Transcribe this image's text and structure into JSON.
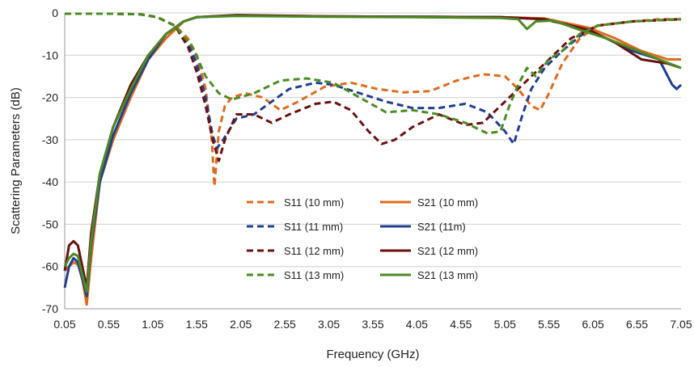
{
  "chart_data": {
    "type": "line",
    "title": "",
    "xlabel": "Frequency (GHz)",
    "ylabel": "Scattering Parameters (dB)",
    "xlim": [
      0.05,
      7.05
    ],
    "ylim": [
      -70,
      0
    ],
    "xticks": [
      "0.05",
      "0.55",
      "1.05",
      "1.55",
      "2.05",
      "2.55",
      "3.05",
      "3.55",
      "4.05",
      "4.55",
      "5.05",
      "5.55",
      "6.05",
      "6.55",
      "7.05"
    ],
    "yticks": [
      "0",
      "-10",
      "-20",
      "-30",
      "-40",
      "-50",
      "-60",
      "-70"
    ],
    "grid": "horizontal",
    "legend": "center",
    "series": [
      {
        "name": "S11 (10 mm)",
        "color": "#E06A1E",
        "dash": true,
        "points": [
          [
            0.05,
            -0.2
          ],
          [
            0.6,
            -0.2
          ],
          [
            0.9,
            -0.3
          ],
          [
            1.1,
            -1
          ],
          [
            1.3,
            -3
          ],
          [
            1.45,
            -6
          ],
          [
            1.55,
            -10
          ],
          [
            1.65,
            -18
          ],
          [
            1.72,
            -30
          ],
          [
            1.75,
            -41
          ],
          [
            1.8,
            -28
          ],
          [
            1.87,
            -22
          ],
          [
            1.95,
            -20
          ],
          [
            2.1,
            -19
          ],
          [
            2.3,
            -20
          ],
          [
            2.5,
            -23
          ],
          [
            2.7,
            -21
          ],
          [
            3.0,
            -17.5
          ],
          [
            3.3,
            -16.5
          ],
          [
            3.6,
            -18
          ],
          [
            3.9,
            -18.8
          ],
          [
            4.2,
            -18.5
          ],
          [
            4.5,
            -16
          ],
          [
            4.8,
            -14.5
          ],
          [
            5.05,
            -15
          ],
          [
            5.2,
            -18
          ],
          [
            5.35,
            -22
          ],
          [
            5.45,
            -23
          ],
          [
            5.55,
            -19
          ],
          [
            5.7,
            -12
          ],
          [
            5.9,
            -6
          ],
          [
            6.1,
            -3
          ],
          [
            6.5,
            -2
          ],
          [
            6.8,
            -1.5
          ],
          [
            7.05,
            -1.5
          ]
        ]
      },
      {
        "name": "S21 (10 mm)",
        "color": "#E06A1E",
        "dash": false,
        "points": [
          [
            0.05,
            -61
          ],
          [
            0.1,
            -60
          ],
          [
            0.15,
            -59
          ],
          [
            0.2,
            -59.5
          ],
          [
            0.25,
            -63
          ],
          [
            0.3,
            -69
          ],
          [
            0.35,
            -58
          ],
          [
            0.45,
            -40
          ],
          [
            0.6,
            -30
          ],
          [
            0.8,
            -20
          ],
          [
            1.0,
            -11
          ],
          [
            1.2,
            -6
          ],
          [
            1.4,
            -2
          ],
          [
            1.55,
            -1
          ],
          [
            2.0,
            -0.6
          ],
          [
            3.0,
            -0.8
          ],
          [
            4.0,
            -0.9
          ],
          [
            5.0,
            -1.0
          ],
          [
            5.5,
            -1.3
          ],
          [
            6.0,
            -3.5
          ],
          [
            6.3,
            -6
          ],
          [
            6.6,
            -9
          ],
          [
            6.9,
            -11
          ],
          [
            7.05,
            -11
          ]
        ]
      },
      {
        "name": "S11 (11 mm)",
        "color": "#1F3F91",
        "dash": true,
        "points": [
          [
            0.05,
            -0.2
          ],
          [
            0.6,
            -0.2
          ],
          [
            0.9,
            -0.3
          ],
          [
            1.1,
            -1
          ],
          [
            1.3,
            -3
          ],
          [
            1.45,
            -7
          ],
          [
            1.55,
            -12
          ],
          [
            1.65,
            -20
          ],
          [
            1.73,
            -29
          ],
          [
            1.78,
            -32
          ],
          [
            1.85,
            -30
          ],
          [
            2.0,
            -25
          ],
          [
            2.2,
            -24
          ],
          [
            2.4,
            -21
          ],
          [
            2.6,
            -18
          ],
          [
            2.9,
            -16.5
          ],
          [
            3.1,
            -17
          ],
          [
            3.4,
            -19
          ],
          [
            3.7,
            -21
          ],
          [
            4.0,
            -22.5
          ],
          [
            4.3,
            -22.5
          ],
          [
            4.6,
            -21.5
          ],
          [
            4.85,
            -23.5
          ],
          [
            5.05,
            -28
          ],
          [
            5.15,
            -31
          ],
          [
            5.25,
            -24
          ],
          [
            5.35,
            -18
          ],
          [
            5.5,
            -13
          ],
          [
            5.7,
            -9
          ],
          [
            5.9,
            -5.5
          ],
          [
            6.1,
            -3
          ],
          [
            6.5,
            -2
          ],
          [
            7.05,
            -1.5
          ]
        ]
      },
      {
        "name": "S21 (11m)",
        "color": "#1F3F91",
        "dash": false,
        "points": [
          [
            0.05,
            -65
          ],
          [
            0.1,
            -60
          ],
          [
            0.15,
            -58
          ],
          [
            0.2,
            -59
          ],
          [
            0.25,
            -63
          ],
          [
            0.3,
            -67
          ],
          [
            0.35,
            -55
          ],
          [
            0.45,
            -40
          ],
          [
            0.6,
            -29
          ],
          [
            0.8,
            -19
          ],
          [
            1.0,
            -11
          ],
          [
            1.2,
            -5
          ],
          [
            1.4,
            -2
          ],
          [
            1.55,
            -1
          ],
          [
            2.0,
            -0.6
          ],
          [
            3.0,
            -0.8
          ],
          [
            4.0,
            -0.9
          ],
          [
            5.0,
            -1.0
          ],
          [
            5.5,
            -1.5
          ],
          [
            6.0,
            -4
          ],
          [
            6.3,
            -7
          ],
          [
            6.5,
            -9
          ],
          [
            6.8,
            -11
          ],
          [
            6.95,
            -17
          ],
          [
            7.0,
            -18
          ],
          [
            7.05,
            -17
          ]
        ]
      },
      {
        "name": "S11 (12 mm)",
        "color": "#6B1010",
        "dash": true,
        "points": [
          [
            0.05,
            -0.2
          ],
          [
            0.6,
            -0.2
          ],
          [
            0.9,
            -0.3
          ],
          [
            1.1,
            -1
          ],
          [
            1.3,
            -3
          ],
          [
            1.45,
            -8
          ],
          [
            1.55,
            -14
          ],
          [
            1.65,
            -22
          ],
          [
            1.73,
            -30
          ],
          [
            1.8,
            -35
          ],
          [
            1.87,
            -30
          ],
          [
            2.0,
            -24
          ],
          [
            2.2,
            -24
          ],
          [
            2.4,
            -26
          ],
          [
            2.6,
            -24
          ],
          [
            2.9,
            -21.5
          ],
          [
            3.1,
            -21
          ],
          [
            3.3,
            -23
          ],
          [
            3.5,
            -28
          ],
          [
            3.65,
            -31
          ],
          [
            3.8,
            -30
          ],
          [
            4.0,
            -27
          ],
          [
            4.3,
            -24
          ],
          [
            4.6,
            -26.5
          ],
          [
            4.8,
            -26
          ],
          [
            5.0,
            -22
          ],
          [
            5.2,
            -18
          ],
          [
            5.4,
            -14
          ],
          [
            5.6,
            -10
          ],
          [
            5.8,
            -6
          ],
          [
            6.1,
            -3
          ],
          [
            6.5,
            -2
          ],
          [
            7.05,
            -1.5
          ]
        ]
      },
      {
        "name": "S21 (12 mm)",
        "color": "#6B1010",
        "dash": false,
        "points": [
          [
            0.05,
            -61
          ],
          [
            0.1,
            -55
          ],
          [
            0.15,
            -54
          ],
          [
            0.2,
            -55
          ],
          [
            0.25,
            -60
          ],
          [
            0.3,
            -65
          ],
          [
            0.35,
            -52
          ],
          [
            0.45,
            -38
          ],
          [
            0.6,
            -27
          ],
          [
            0.8,
            -17
          ],
          [
            1.0,
            -10
          ],
          [
            1.2,
            -5
          ],
          [
            1.4,
            -2
          ],
          [
            1.55,
            -1
          ],
          [
            2.0,
            -0.5
          ],
          [
            3.0,
            -0.8
          ],
          [
            4.0,
            -0.9
          ],
          [
            5.0,
            -1.0
          ],
          [
            5.5,
            -1.5
          ],
          [
            6.0,
            -4
          ],
          [
            6.3,
            -7
          ],
          [
            6.6,
            -11
          ],
          [
            6.9,
            -12
          ],
          [
            7.05,
            -13
          ]
        ]
      },
      {
        "name": "S11 (13 mm)",
        "color": "#4C8A24",
        "dash": true,
        "points": [
          [
            0.05,
            -0.2
          ],
          [
            0.6,
            -0.2
          ],
          [
            0.9,
            -0.3
          ],
          [
            1.1,
            -1
          ],
          [
            1.3,
            -3
          ],
          [
            1.5,
            -8
          ],
          [
            1.65,
            -15
          ],
          [
            1.8,
            -19
          ],
          [
            1.95,
            -20.5
          ],
          [
            2.2,
            -19
          ],
          [
            2.5,
            -16
          ],
          [
            2.8,
            -15.5
          ],
          [
            3.1,
            -16.5
          ],
          [
            3.4,
            -20
          ],
          [
            3.7,
            -23.5
          ],
          [
            4.0,
            -23
          ],
          [
            4.3,
            -24
          ],
          [
            4.6,
            -26
          ],
          [
            4.85,
            -28.5
          ],
          [
            5.0,
            -28
          ],
          [
            5.1,
            -22
          ],
          [
            5.2,
            -17
          ],
          [
            5.3,
            -13
          ],
          [
            5.4,
            -15
          ],
          [
            5.55,
            -11
          ],
          [
            5.7,
            -9
          ],
          [
            5.9,
            -5
          ],
          [
            6.1,
            -3
          ],
          [
            6.5,
            -2
          ],
          [
            7.05,
            -1.5
          ]
        ]
      },
      {
        "name": "S21 (13 mm)",
        "color": "#4C8A24",
        "dash": false,
        "points": [
          [
            0.05,
            -60
          ],
          [
            0.1,
            -58
          ],
          [
            0.15,
            -57
          ],
          [
            0.2,
            -57.5
          ],
          [
            0.25,
            -62
          ],
          [
            0.3,
            -66
          ],
          [
            0.35,
            -54
          ],
          [
            0.45,
            -38
          ],
          [
            0.6,
            -27
          ],
          [
            0.8,
            -18
          ],
          [
            1.0,
            -10
          ],
          [
            1.2,
            -5
          ],
          [
            1.4,
            -2
          ],
          [
            1.55,
            -1
          ],
          [
            2.0,
            -0.7
          ],
          [
            3.0,
            -0.9
          ],
          [
            4.0,
            -1.0
          ],
          [
            5.0,
            -1.2
          ],
          [
            5.2,
            -1.5
          ],
          [
            5.3,
            -3.8
          ],
          [
            5.4,
            -2
          ],
          [
            5.6,
            -1.8
          ],
          [
            5.9,
            -4
          ],
          [
            6.2,
            -6
          ],
          [
            6.5,
            -8.5
          ],
          [
            6.8,
            -11
          ],
          [
            7.05,
            -13
          ]
        ]
      }
    ]
  }
}
